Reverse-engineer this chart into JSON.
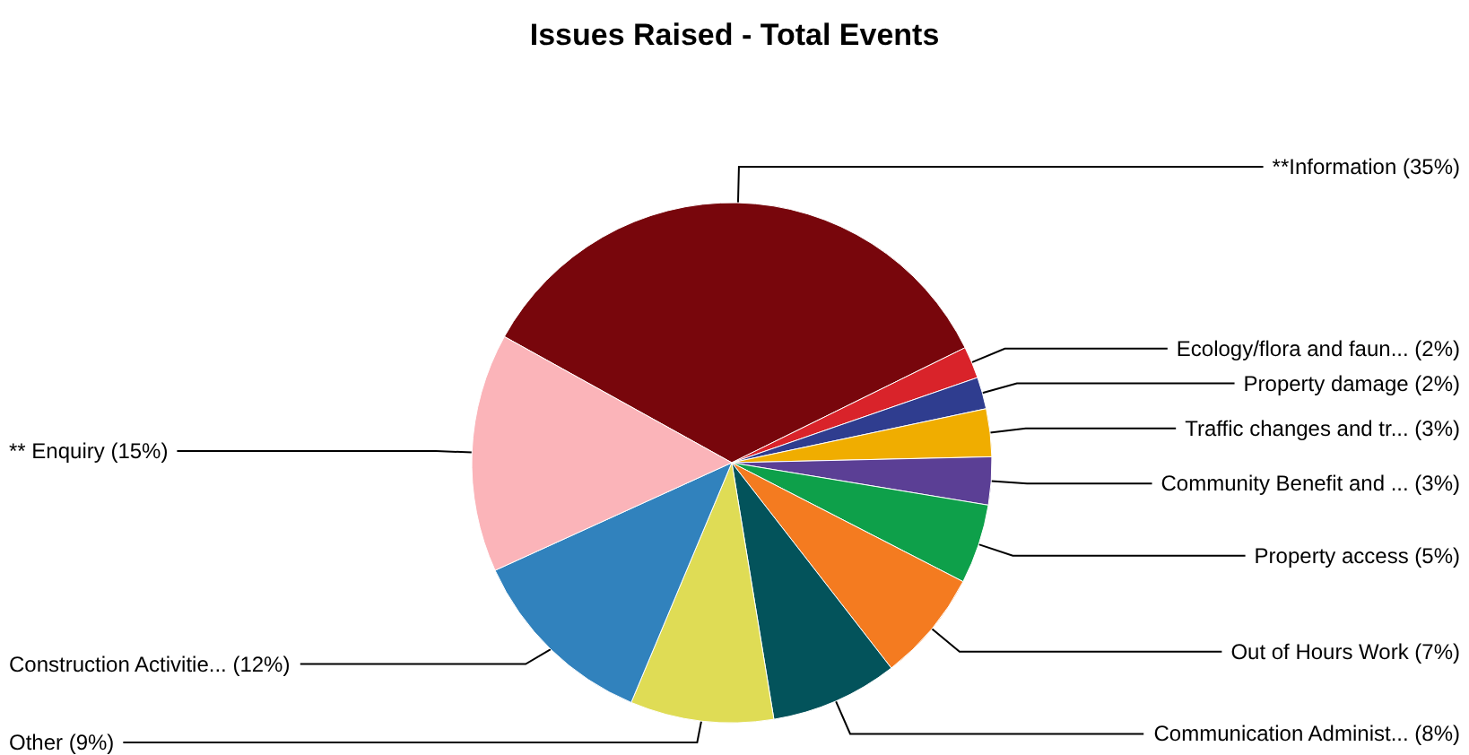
{
  "chart_data": {
    "type": "pie",
    "title": "Issues Raised - Total Events",
    "categories": [
      "**Information",
      "Ecology/flora and faun...",
      "Property damage",
      "Traffic changes and tr...",
      "Community Benefit and ...",
      "Property access",
      "Out of Hours Work",
      "Communication Administ...",
      "Other",
      "Construction Activitie...",
      "** Enquiry"
    ],
    "values": [
      35,
      2,
      2,
      3,
      3,
      5,
      7,
      8,
      9,
      12,
      15
    ],
    "value_labels": [
      "(35%)",
      "(2%)",
      "(2%)",
      "(3%)",
      "(3%)",
      "(5%)",
      "(7%)",
      "(8%)",
      "(9%)",
      "(12%)",
      "(15%)"
    ],
    "colors": [
      "#78060c",
      "#d9232a",
      "#2f3d8f",
      "#f0ad00",
      "#5b3f95",
      "#0ea04a",
      "#f47b20",
      "#03535b",
      "#dfdc55",
      "#3182bd",
      "#fbb4b9"
    ],
    "legend": false
  }
}
